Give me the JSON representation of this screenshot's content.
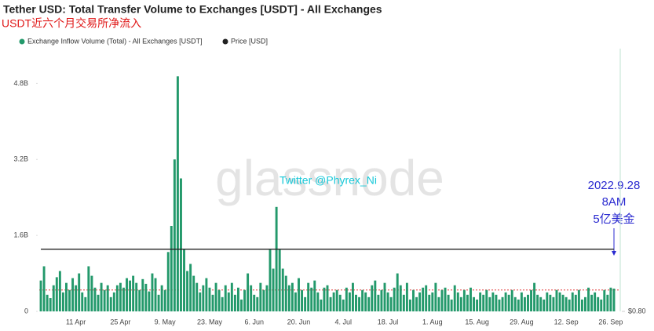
{
  "chart_data": {
    "type": "bar",
    "title": "Tether USD: Total Transfer Volume to Exchanges [USDT] - All Exchanges",
    "subtitle": "USDT近六个月交易所净流入",
    "categories": [
      null,
      null,
      null,
      null,
      null,
      null,
      null,
      null,
      null,
      null,
      null,
      "11 Apr",
      null,
      null,
      null,
      null,
      null,
      null,
      null,
      null,
      null,
      null,
      null,
      null,
      null,
      "25 Apr",
      null,
      null,
      null,
      null,
      null,
      null,
      null,
      null,
      null,
      null,
      null,
      null,
      null,
      "9. May",
      null,
      null,
      null,
      null,
      null,
      null,
      null,
      null,
      null,
      null,
      null,
      null,
      null,
      "23. May",
      null,
      null,
      null,
      null,
      null,
      null,
      null,
      null,
      null,
      null,
      null,
      null,
      null,
      "6. Jun",
      null,
      null,
      null,
      null,
      null,
      null,
      null,
      null,
      null,
      null,
      null,
      null,
      null,
      "20. Jun",
      null,
      null,
      null,
      null,
      null,
      null,
      null,
      null,
      null,
      null,
      null,
      null,
      null,
      "4. Jul",
      null,
      null,
      null,
      null,
      null,
      null,
      null,
      null,
      null,
      null,
      null,
      null,
      null,
      "18. Jul",
      null,
      null,
      null,
      null,
      null,
      null,
      null,
      null,
      null,
      null,
      null,
      null,
      null,
      "1. Aug",
      null,
      null,
      null,
      null,
      null,
      null,
      null,
      null,
      null,
      null,
      null,
      null,
      null,
      "15. Aug",
      null,
      null,
      null,
      null,
      null,
      null,
      null,
      null,
      null,
      null,
      null,
      null,
      null,
      "29. Aug",
      null,
      null,
      null,
      null,
      null,
      null,
      null,
      null,
      null,
      null,
      null,
      null,
      null,
      "12. Sep",
      null,
      null,
      null,
      null,
      null,
      null,
      null,
      null,
      null,
      null,
      null,
      null,
      null,
      "26. Sep",
      null
    ],
    "series": [
      {
        "name": "Exchange Inflow Volume (Total) - All Exchanges [USDT]",
        "color": "#23996b",
        "values": [
          0.65,
          0.95,
          0.35,
          0.28,
          0.55,
          0.72,
          0.85,
          0.4,
          0.6,
          0.45,
          0.7,
          0.55,
          0.8,
          0.4,
          0.3,
          0.95,
          0.75,
          0.5,
          0.35,
          0.6,
          0.45,
          0.55,
          0.3,
          0.4,
          0.55,
          0.6,
          0.5,
          0.7,
          0.65,
          0.75,
          0.6,
          0.45,
          0.68,
          0.58,
          0.42,
          0.8,
          0.7,
          0.35,
          0.55,
          0.45,
          1.25,
          1.8,
          3.2,
          4.95,
          2.8,
          1.3,
          0.85,
          1.0,
          0.75,
          0.6,
          0.4,
          0.55,
          0.7,
          0.5,
          0.35,
          0.6,
          0.45,
          0.3,
          0.55,
          0.4,
          0.6,
          0.35,
          0.5,
          0.25,
          0.45,
          0.8,
          0.55,
          0.35,
          0.3,
          0.6,
          0.45,
          0.55,
          1.3,
          0.9,
          2.2,
          1.3,
          0.9,
          0.75,
          0.55,
          0.6,
          0.4,
          0.7,
          0.45,
          0.3,
          0.6,
          0.5,
          0.65,
          0.4,
          0.25,
          0.5,
          0.55,
          0.3,
          0.4,
          0.45,
          0.35,
          0.25,
          0.5,
          0.4,
          0.6,
          0.35,
          0.3,
          0.45,
          0.4,
          0.3,
          0.55,
          0.65,
          0.35,
          0.45,
          0.6,
          0.4,
          0.3,
          0.5,
          0.8,
          0.55,
          0.35,
          0.6,
          0.25,
          0.45,
          0.3,
          0.4,
          0.5,
          0.55,
          0.35,
          0.4,
          0.6,
          0.3,
          0.45,
          0.5,
          0.35,
          0.25,
          0.55,
          0.4,
          0.3,
          0.45,
          0.35,
          0.5,
          0.3,
          0.25,
          0.4,
          0.35,
          0.45,
          0.3,
          0.4,
          0.35,
          0.25,
          0.3,
          0.4,
          0.35,
          0.45,
          0.3,
          0.25,
          0.4,
          0.3,
          0.35,
          0.45,
          0.6,
          0.35,
          0.3,
          0.25,
          0.4,
          0.35,
          0.3,
          0.45,
          0.4,
          0.35,
          0.3,
          0.25,
          0.4,
          0.35,
          0.45,
          0.25,
          0.3,
          0.5,
          0.35,
          0.4,
          0.3,
          0.25,
          0.45,
          0.35,
          0.5,
          0.48
        ]
      },
      {
        "name": "Price [USD]",
        "color": "#222222",
        "type": "line",
        "axis": "y2",
        "values": [
          1,
          1,
          1,
          1,
          1,
          1,
          1,
          1,
          1,
          1,
          1,
          1,
          1,
          1,
          1,
          1,
          1,
          1,
          1,
          1,
          1,
          1,
          1,
          1,
          1,
          1,
          1,
          1,
          1,
          1,
          1,
          1,
          1,
          1,
          1,
          1,
          1,
          1,
          1,
          1,
          1,
          1,
          1,
          1,
          1,
          1,
          1,
          1,
          1,
          1,
          1,
          1,
          1,
          1,
          1,
          1,
          1,
          1,
          1,
          1,
          1,
          1,
          1,
          1,
          1,
          1,
          1,
          1,
          1,
          1,
          1,
          1,
          1,
          1,
          1,
          1,
          1,
          1,
          1,
          1,
          1,
          1,
          1,
          1,
          1,
          1,
          1,
          1,
          1,
          1,
          1,
          1,
          1,
          1,
          1,
          1,
          1,
          1,
          1,
          1,
          1,
          1,
          1,
          1,
          1,
          1,
          1,
          1,
          1,
          1,
          1,
          1,
          1,
          1,
          1,
          1,
          1,
          1,
          1,
          1,
          1,
          1,
          1,
          1,
          1,
          1,
          1,
          1,
          1,
          1,
          1,
          1,
          1,
          1,
          1,
          1,
          1,
          1,
          1,
          1,
          1,
          1,
          1,
          1,
          1,
          1,
          1,
          1,
          1,
          1,
          1,
          1,
          1,
          1,
          1,
          1,
          1,
          1,
          1,
          1,
          1,
          1,
          1,
          1,
          1,
          1,
          1,
          1,
          1,
          1,
          1,
          1,
          1,
          1,
          1,
          1,
          1,
          1,
          1,
          1,
          1
        ]
      }
    ],
    "ylim": [
      0,
      5.5
    ],
    "yticks": [
      0,
      {
        "value": 1.6,
        "label": "1.6B"
      },
      {
        "value": 3.2,
        "label": "3.2B"
      },
      {
        "value": 4.8,
        "label": "4.8B"
      }
    ],
    "y2lim": [
      0.8,
      1.64
    ],
    "y2ticks": [
      {
        "value": 0.8,
        "label": "$0.80"
      }
    ],
    "reference_line": {
      "value": 0.45,
      "color": "#e03030"
    },
    "watermark": "glassnode",
    "annotations": [
      "Twitter @Phyrex_Ni",
      "2022.9.28",
      "8AM",
      "5亿美金"
    ]
  }
}
